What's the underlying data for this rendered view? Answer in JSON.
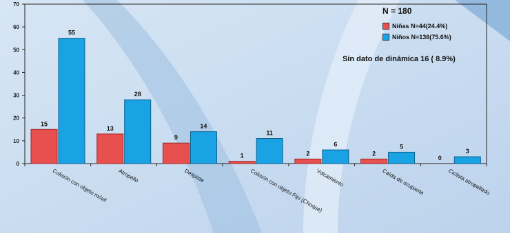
{
  "chart_data": {
    "type": "bar",
    "categories": [
      "Colisión con objeto móvil",
      "Atropello",
      "Despiste",
      "Colisión con objeto Fijo (Choque)",
      "Volcamiento",
      "Caída de ocupante",
      "Ciclista atropellado"
    ],
    "series": [
      {
        "name": "Niñas N=44(24.4%)",
        "values": [
          15,
          13,
          9,
          1,
          2,
          2,
          0
        ]
      },
      {
        "name": "Niños N=136(75.6%)",
        "values": [
          55,
          28,
          14,
          11,
          6,
          5,
          3
        ]
      }
    ],
    "title": "",
    "xlabel": "",
    "ylabel": "",
    "ylim": [
      0,
      70
    ],
    "yticks": [
      "0",
      "10",
      "20",
      "30",
      "40",
      "50",
      "60",
      "70"
    ],
    "grid": false,
    "legend_position": "top-right"
  },
  "legend": {
    "n_label": "N = 180",
    "girls_label": "Niñas N=44(24.4%)",
    "boys_label": "Niños N=136(75.6%)"
  },
  "note": "Sin dato de dinámica 16 ( 8.9%)",
  "colors": {
    "girls": "#e8504f",
    "boys": "#1aa3e4",
    "background": "#c9dcf0"
  }
}
